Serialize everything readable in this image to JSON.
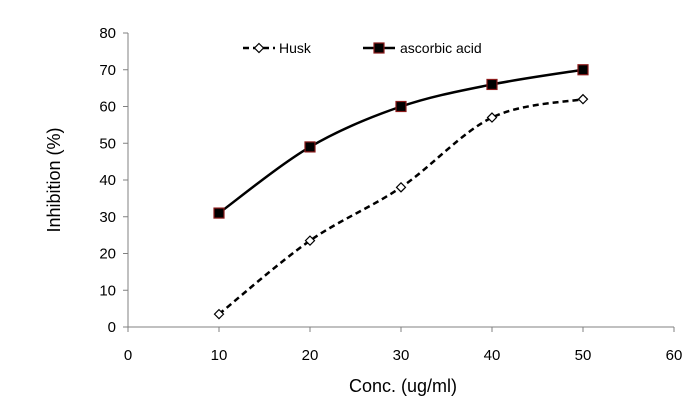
{
  "chart_data": {
    "type": "line",
    "xlabel": "Conc. (ug/ml)",
    "ylabel": "Inhibition (%)",
    "xlim": [
      0,
      60
    ],
    "ylim": [
      0,
      80
    ],
    "xticks": [
      0,
      10,
      20,
      30,
      40,
      50,
      60
    ],
    "yticks": [
      0,
      10,
      20,
      30,
      40,
      50,
      60,
      70,
      80
    ],
    "xtick_labels": [
      "0",
      "10",
      "20",
      "30",
      "40",
      "50",
      "60"
    ],
    "ytick_labels": [
      "0",
      "10",
      "20",
      "30",
      "40",
      "50",
      "60",
      "70",
      "80"
    ],
    "grid": false,
    "legend": "top",
    "x": [
      10,
      20,
      30,
      40,
      50
    ],
    "series": [
      {
        "name": "Husk",
        "values": [
          3.5,
          23.5,
          38,
          57,
          62
        ],
        "line_style": "dashed",
        "marker": "open-diamond",
        "color": "#000000"
      },
      {
        "name": "ascorbic acid",
        "values": [
          31,
          49,
          60,
          66,
          70
        ],
        "line_style": "solid",
        "marker": "filled-square",
        "color": "#000000",
        "marker_edge_color": "#8b1a1a"
      }
    ]
  }
}
